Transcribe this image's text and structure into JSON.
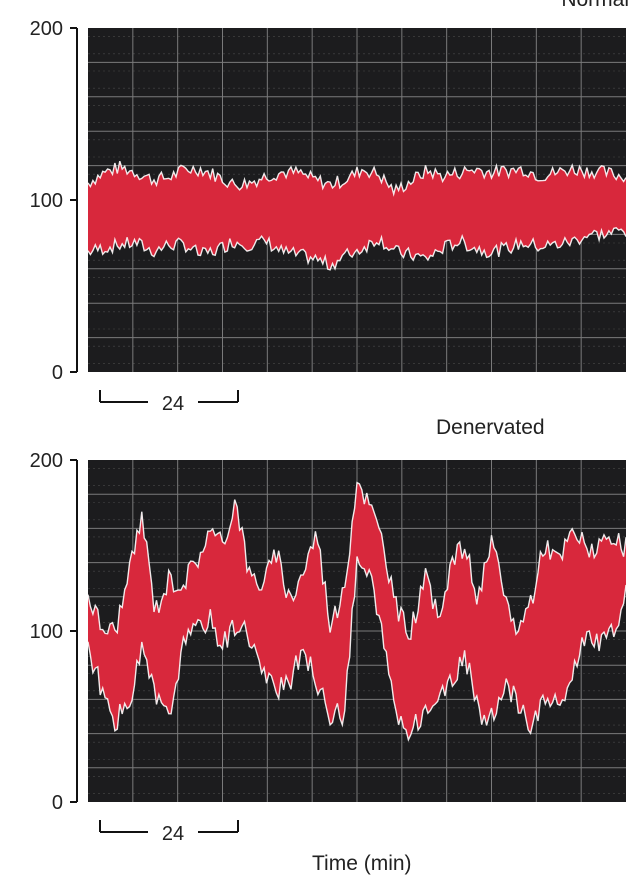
{
  "chart_data": [
    {
      "type": "line",
      "title": "Normal",
      "yticks": [
        0,
        100,
        200
      ],
      "ylim": [
        0,
        200
      ],
      "xlim": [
        0,
        100
      ],
      "scale_bar_label": "24",
      "grid": true,
      "colors": {
        "trace": "#d8283c",
        "background": "#1c1c1e",
        "grid": "#9a9a9a"
      },
      "series": [
        {
          "x": [
            0,
            3,
            6,
            9,
            12,
            15,
            18,
            21,
            24,
            27,
            30,
            33,
            36,
            39,
            42,
            45,
            48,
            51,
            54,
            57,
            60,
            63,
            66,
            69,
            72,
            75,
            78,
            81,
            84,
            87,
            90,
            93,
            96,
            99
          ],
          "upper": [
            110,
            116,
            119,
            116,
            112,
            113,
            118,
            118,
            114,
            109,
            110,
            114,
            116,
            116,
            112,
            109,
            112,
            118,
            115,
            105,
            111,
            117,
            114,
            116,
            118,
            116,
            117,
            118,
            114,
            116,
            118,
            117,
            116,
            114
          ],
          "lower": [
            70,
            72,
            74,
            75,
            70,
            74,
            74,
            68,
            71,
            76,
            74,
            76,
            70,
            68,
            66,
            62,
            68,
            72,
            78,
            70,
            68,
            66,
            72,
            76,
            72,
            70,
            72,
            75,
            73,
            74,
            76,
            80,
            80,
            82
          ]
        }
      ]
    },
    {
      "type": "line",
      "title": "Denervated",
      "yticks": [
        0,
        100,
        200
      ],
      "ylim": [
        0,
        200
      ],
      "xlim": [
        0,
        100
      ],
      "scale_bar_label": "24",
      "grid": true,
      "colors": {
        "trace": "#d8283c",
        "background": "#1c1c1e",
        "grid": "#9a9a9a"
      },
      "series": [
        {
          "x": [
            0,
            2.5,
            5,
            7.5,
            10,
            12.5,
            15,
            17.5,
            20,
            22.5,
            25,
            27.5,
            30,
            32.5,
            35,
            37.5,
            40,
            42.5,
            45,
            47.5,
            50,
            52.5,
            55,
            57.5,
            60,
            62.5,
            65,
            67.5,
            70,
            72.5,
            75,
            77.5,
            80,
            82.5,
            85,
            87.5,
            90,
            92.5,
            95,
            97.5,
            100
          ],
          "upper": [
            122,
            102,
            100,
            130,
            168,
            112,
            130,
            128,
            140,
            158,
            150,
            178,
            132,
            128,
            145,
            118,
            135,
            158,
            105,
            120,
            190,
            172,
            150,
            110,
            100,
            132,
            108,
            140,
            150,
            118,
            152,
            118,
            100,
            120,
            152,
            140,
            158,
            150,
            148,
            152,
            148
          ],
          "lower": [
            92,
            65,
            48,
            55,
            88,
            62,
            48,
            90,
            100,
            108,
            92,
            105,
            98,
            75,
            65,
            68,
            92,
            68,
            52,
            50,
            140,
            132,
            90,
            50,
            40,
            54,
            60,
            68,
            88,
            52,
            48,
            68,
            58,
            44,
            62,
            55,
            74,
            100,
            90,
            100,
            120
          ]
        }
      ]
    }
  ],
  "labels": {
    "normal": "Normal",
    "denervated": "Denervated",
    "x_axis": "Time (min)"
  }
}
